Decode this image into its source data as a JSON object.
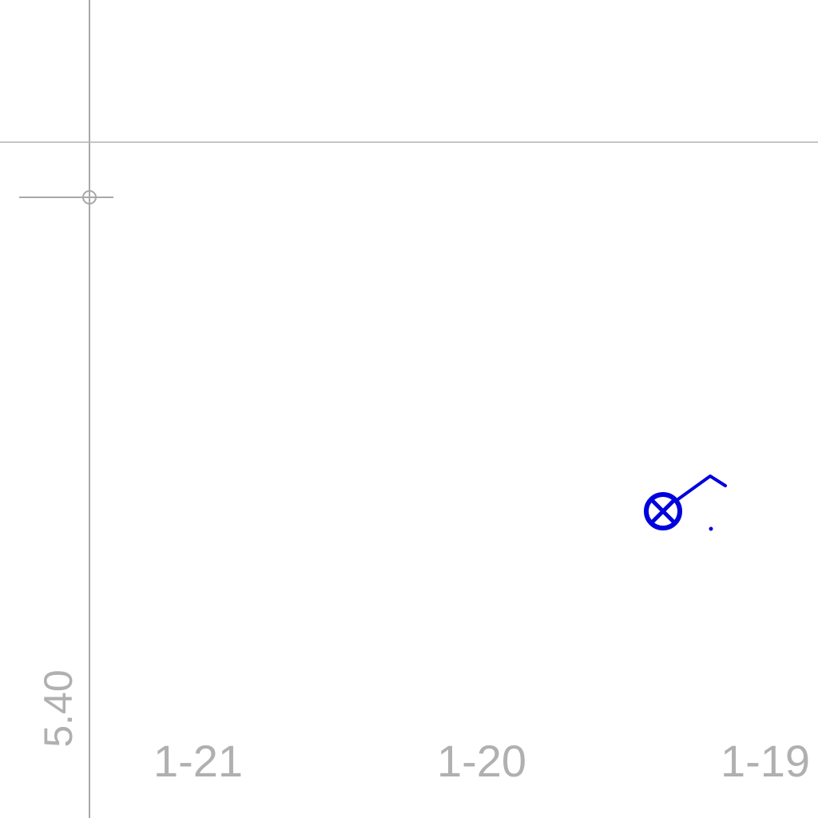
{
  "plot": {
    "x_labels": [
      "1-21",
      "1-20",
      "1-19"
    ],
    "y_label": "5.40"
  },
  "symbol": {
    "color": "#0000dd",
    "name": "station-symbol-circle-x-with-barb"
  },
  "colors": {
    "grid": "#a8a8a8",
    "label": "#b0b0b0",
    "background": "#ffffff"
  }
}
